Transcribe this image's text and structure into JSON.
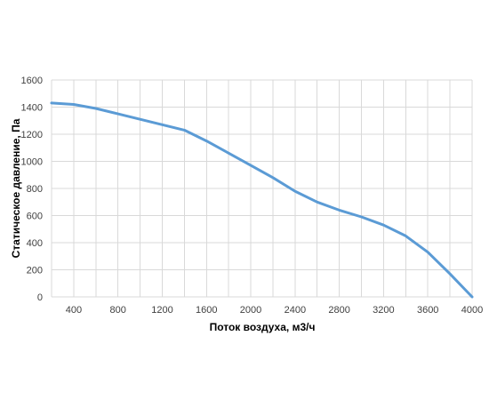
{
  "chart_data": {
    "type": "line",
    "title": "",
    "xlabel": "Поток воздуха, м3/ч",
    "ylabel": "Статическое давление, Па",
    "xlim": [
      200,
      4000
    ],
    "ylim": [
      0,
      1600
    ],
    "x_ticks": [
      400,
      800,
      1200,
      1600,
      2000,
      2400,
      2800,
      3200,
      3600,
      4000
    ],
    "x_gridlines": [
      200,
      400,
      600,
      800,
      1000,
      1200,
      1400,
      1600,
      1800,
      2000,
      2200,
      2400,
      2600,
      2800,
      3000,
      3200,
      3400,
      3600,
      3800,
      4000
    ],
    "y_ticks": [
      0,
      200,
      400,
      600,
      800,
      1000,
      1200,
      1400,
      1600
    ],
    "grid": true,
    "legend": "none",
    "series": [
      {
        "color": "#5b9bd5",
        "x": [
          200,
          400,
          600,
          800,
          1000,
          1200,
          1400,
          1600,
          1800,
          2000,
          2200,
          2400,
          2600,
          2800,
          3000,
          3200,
          3400,
          3600,
          3800,
          4000
        ],
        "y": [
          1430,
          1420,
          1390,
          1350,
          1310,
          1270,
          1230,
          1150,
          1060,
          970,
          880,
          780,
          700,
          640,
          590,
          530,
          450,
          330,
          170,
          0
        ]
      }
    ]
  }
}
